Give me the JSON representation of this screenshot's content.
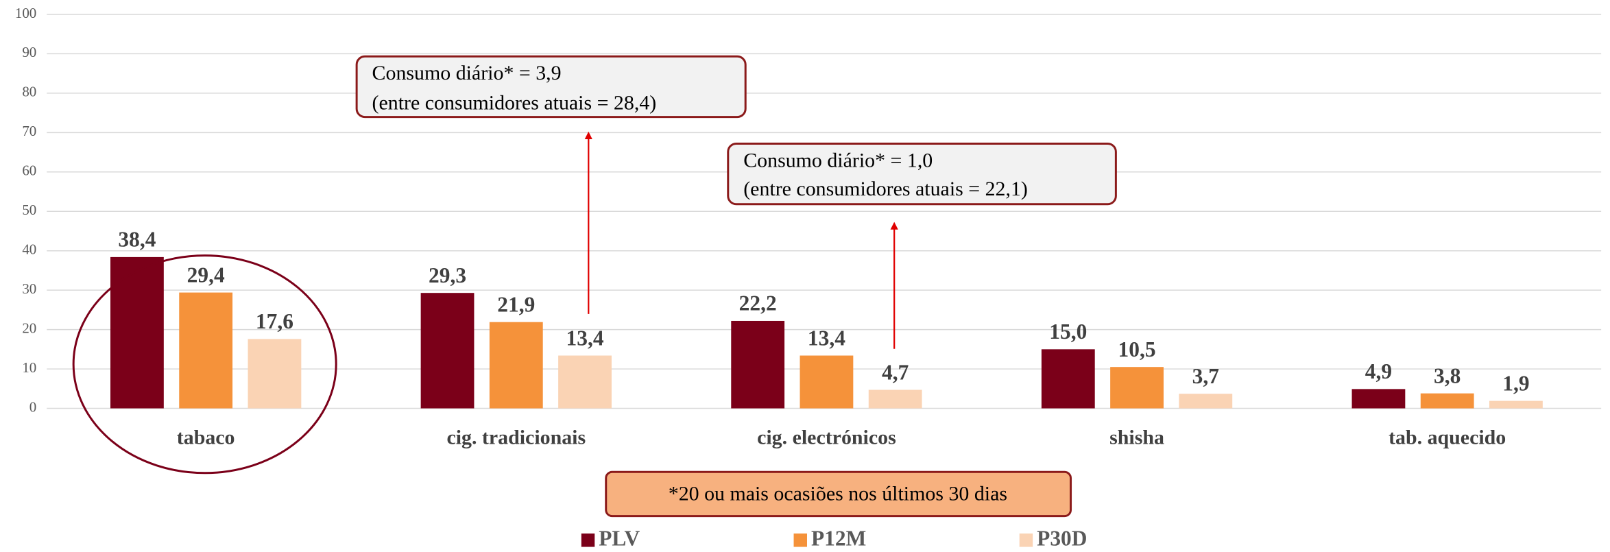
{
  "chart_data": {
    "type": "bar",
    "categories": [
      "tabaco",
      "cig. tradicionais",
      "cig. electrónicos",
      "shisha",
      "tab. aquecido"
    ],
    "series": [
      {
        "name": "PLV",
        "color": "#7b0019",
        "values": [
          38.4,
          29.3,
          22.2,
          15.0,
          4.9
        ],
        "value_labels": [
          "38,4",
          "29,3",
          "22,2",
          "15,0",
          "4,9"
        ]
      },
      {
        "name": "P12M",
        "color": "#f5923a",
        "values": [
          29.4,
          21.9,
          13.4,
          10.5,
          3.8
        ],
        "value_labels": [
          "29,4",
          "21,9",
          "13,4",
          "10,5",
          "3,8"
        ]
      },
      {
        "name": "P30D",
        "color": "#fad3b4",
        "values": [
          17.6,
          13.4,
          4.7,
          3.7,
          1.9
        ],
        "value_labels": [
          "17,6",
          "13,4",
          "4,7",
          "3,7",
          "1,9"
        ]
      }
    ],
    "ylim": [
      0,
      100
    ],
    "yticks": [
      0,
      10,
      20,
      30,
      40,
      50,
      60,
      70,
      80,
      90,
      100
    ],
    "grid": true,
    "legend": "bottom",
    "annotations": [
      {
        "lines": [
          "Consumo diário* = 3,9",
          "(entre consumidores atuais = 28,4)"
        ]
      },
      {
        "lines": [
          "Consumo diário* = 1,0",
          "(entre consumidores atuais = 22,1)"
        ]
      }
    ],
    "footnote": "*20 ou mais ocasiões nos últimos 30 dias"
  }
}
